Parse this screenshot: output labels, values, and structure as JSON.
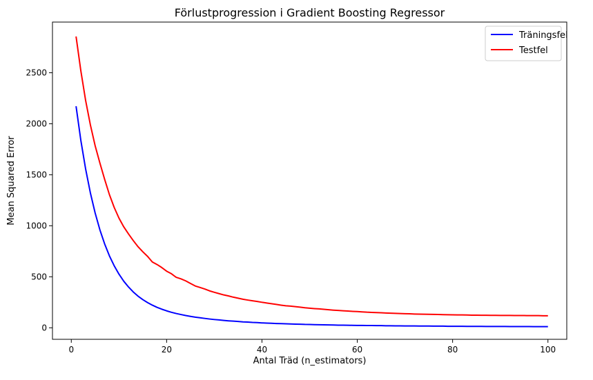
{
  "chart_data": {
    "type": "line",
    "title": "Förlustprogression i Gradient Boosting Regressor",
    "xlabel": "Antal Träd (n_estimators)",
    "ylabel": "Mean Squared Error",
    "xlim": [
      -3.95,
      103.95
    ],
    "ylim": [
      -113,
      2997
    ],
    "xticks": [
      0,
      20,
      40,
      60,
      80,
      100
    ],
    "yticks": [
      0,
      500,
      1000,
      1500,
      2000,
      2500
    ],
    "grid": false,
    "legend_position": "top-right",
    "x": [
      1,
      2,
      3,
      4,
      5,
      6,
      7,
      8,
      9,
      10,
      11,
      12,
      13,
      14,
      15,
      16,
      17,
      18,
      19,
      20,
      21,
      22,
      23,
      24,
      25,
      26,
      27,
      28,
      29,
      30,
      31,
      32,
      33,
      34,
      35,
      36,
      37,
      38,
      39,
      40,
      41,
      42,
      43,
      44,
      45,
      46,
      47,
      48,
      49,
      50,
      51,
      52,
      53,
      54,
      55,
      56,
      57,
      58,
      59,
      60,
      61,
      62,
      63,
      64,
      65,
      66,
      67,
      68,
      69,
      70,
      71,
      72,
      73,
      74,
      75,
      76,
      77,
      78,
      79,
      80,
      81,
      82,
      83,
      84,
      85,
      86,
      87,
      88,
      89,
      90,
      91,
      92,
      93,
      94,
      95,
      96,
      97,
      98,
      99,
      100
    ],
    "series": [
      {
        "name": "Träningsfel",
        "color": "#0000ff",
        "values": [
          2172,
          1838,
          1558,
          1323,
          1126,
          960,
          822,
          705,
          608,
          526,
          457,
          400,
          351,
          310,
          276,
          247,
          222,
          200,
          182,
          166,
          152,
          140,
          130,
          120,
          112,
          104,
          98,
          92,
          86,
          81,
          77,
          72,
          68,
          65,
          62,
          58,
          56,
          53,
          51,
          48,
          46,
          44,
          42,
          41,
          39,
          37,
          36,
          35,
          33,
          32,
          31,
          30,
          29,
          28,
          27,
          26,
          26,
          25,
          24,
          23,
          23,
          22,
          22,
          21,
          21,
          20,
          20,
          19,
          19,
          18,
          18,
          18,
          17,
          17,
          17,
          16,
          16,
          16,
          15,
          15,
          15,
          15,
          14,
          14,
          14,
          14,
          13,
          13,
          13,
          13,
          13,
          12,
          12,
          12,
          12,
          12,
          11,
          11,
          11,
          11
        ]
      },
      {
        "name": "Testfel",
        "color": "#ff0000",
        "values": [
          2856,
          2520,
          2230,
          1990,
          1785,
          1615,
          1455,
          1305,
          1180,
          1075,
          990,
          920,
          855,
          795,
          745,
          700,
          645,
          620,
          590,
          555,
          530,
          495,
          480,
          460,
          435,
          410,
          395,
          380,
          362,
          348,
          335,
          322,
          312,
          300,
          290,
          280,
          272,
          265,
          258,
          250,
          243,
          236,
          229,
          222,
          216,
          212,
          207,
          202,
          196,
          192,
          188,
          185,
          181,
          177,
          173,
          170,
          167,
          164,
          161,
          159,
          156,
          153,
          151,
          149,
          147,
          145,
          143,
          141,
          140,
          138,
          137,
          135,
          134,
          133,
          132,
          131,
          130,
          129,
          128,
          127,
          126,
          126,
          125,
          124,
          124,
          123,
          123,
          122,
          122,
          121,
          121,
          121,
          120,
          120,
          120,
          119,
          119,
          119,
          118,
          118
        ]
      }
    ]
  }
}
